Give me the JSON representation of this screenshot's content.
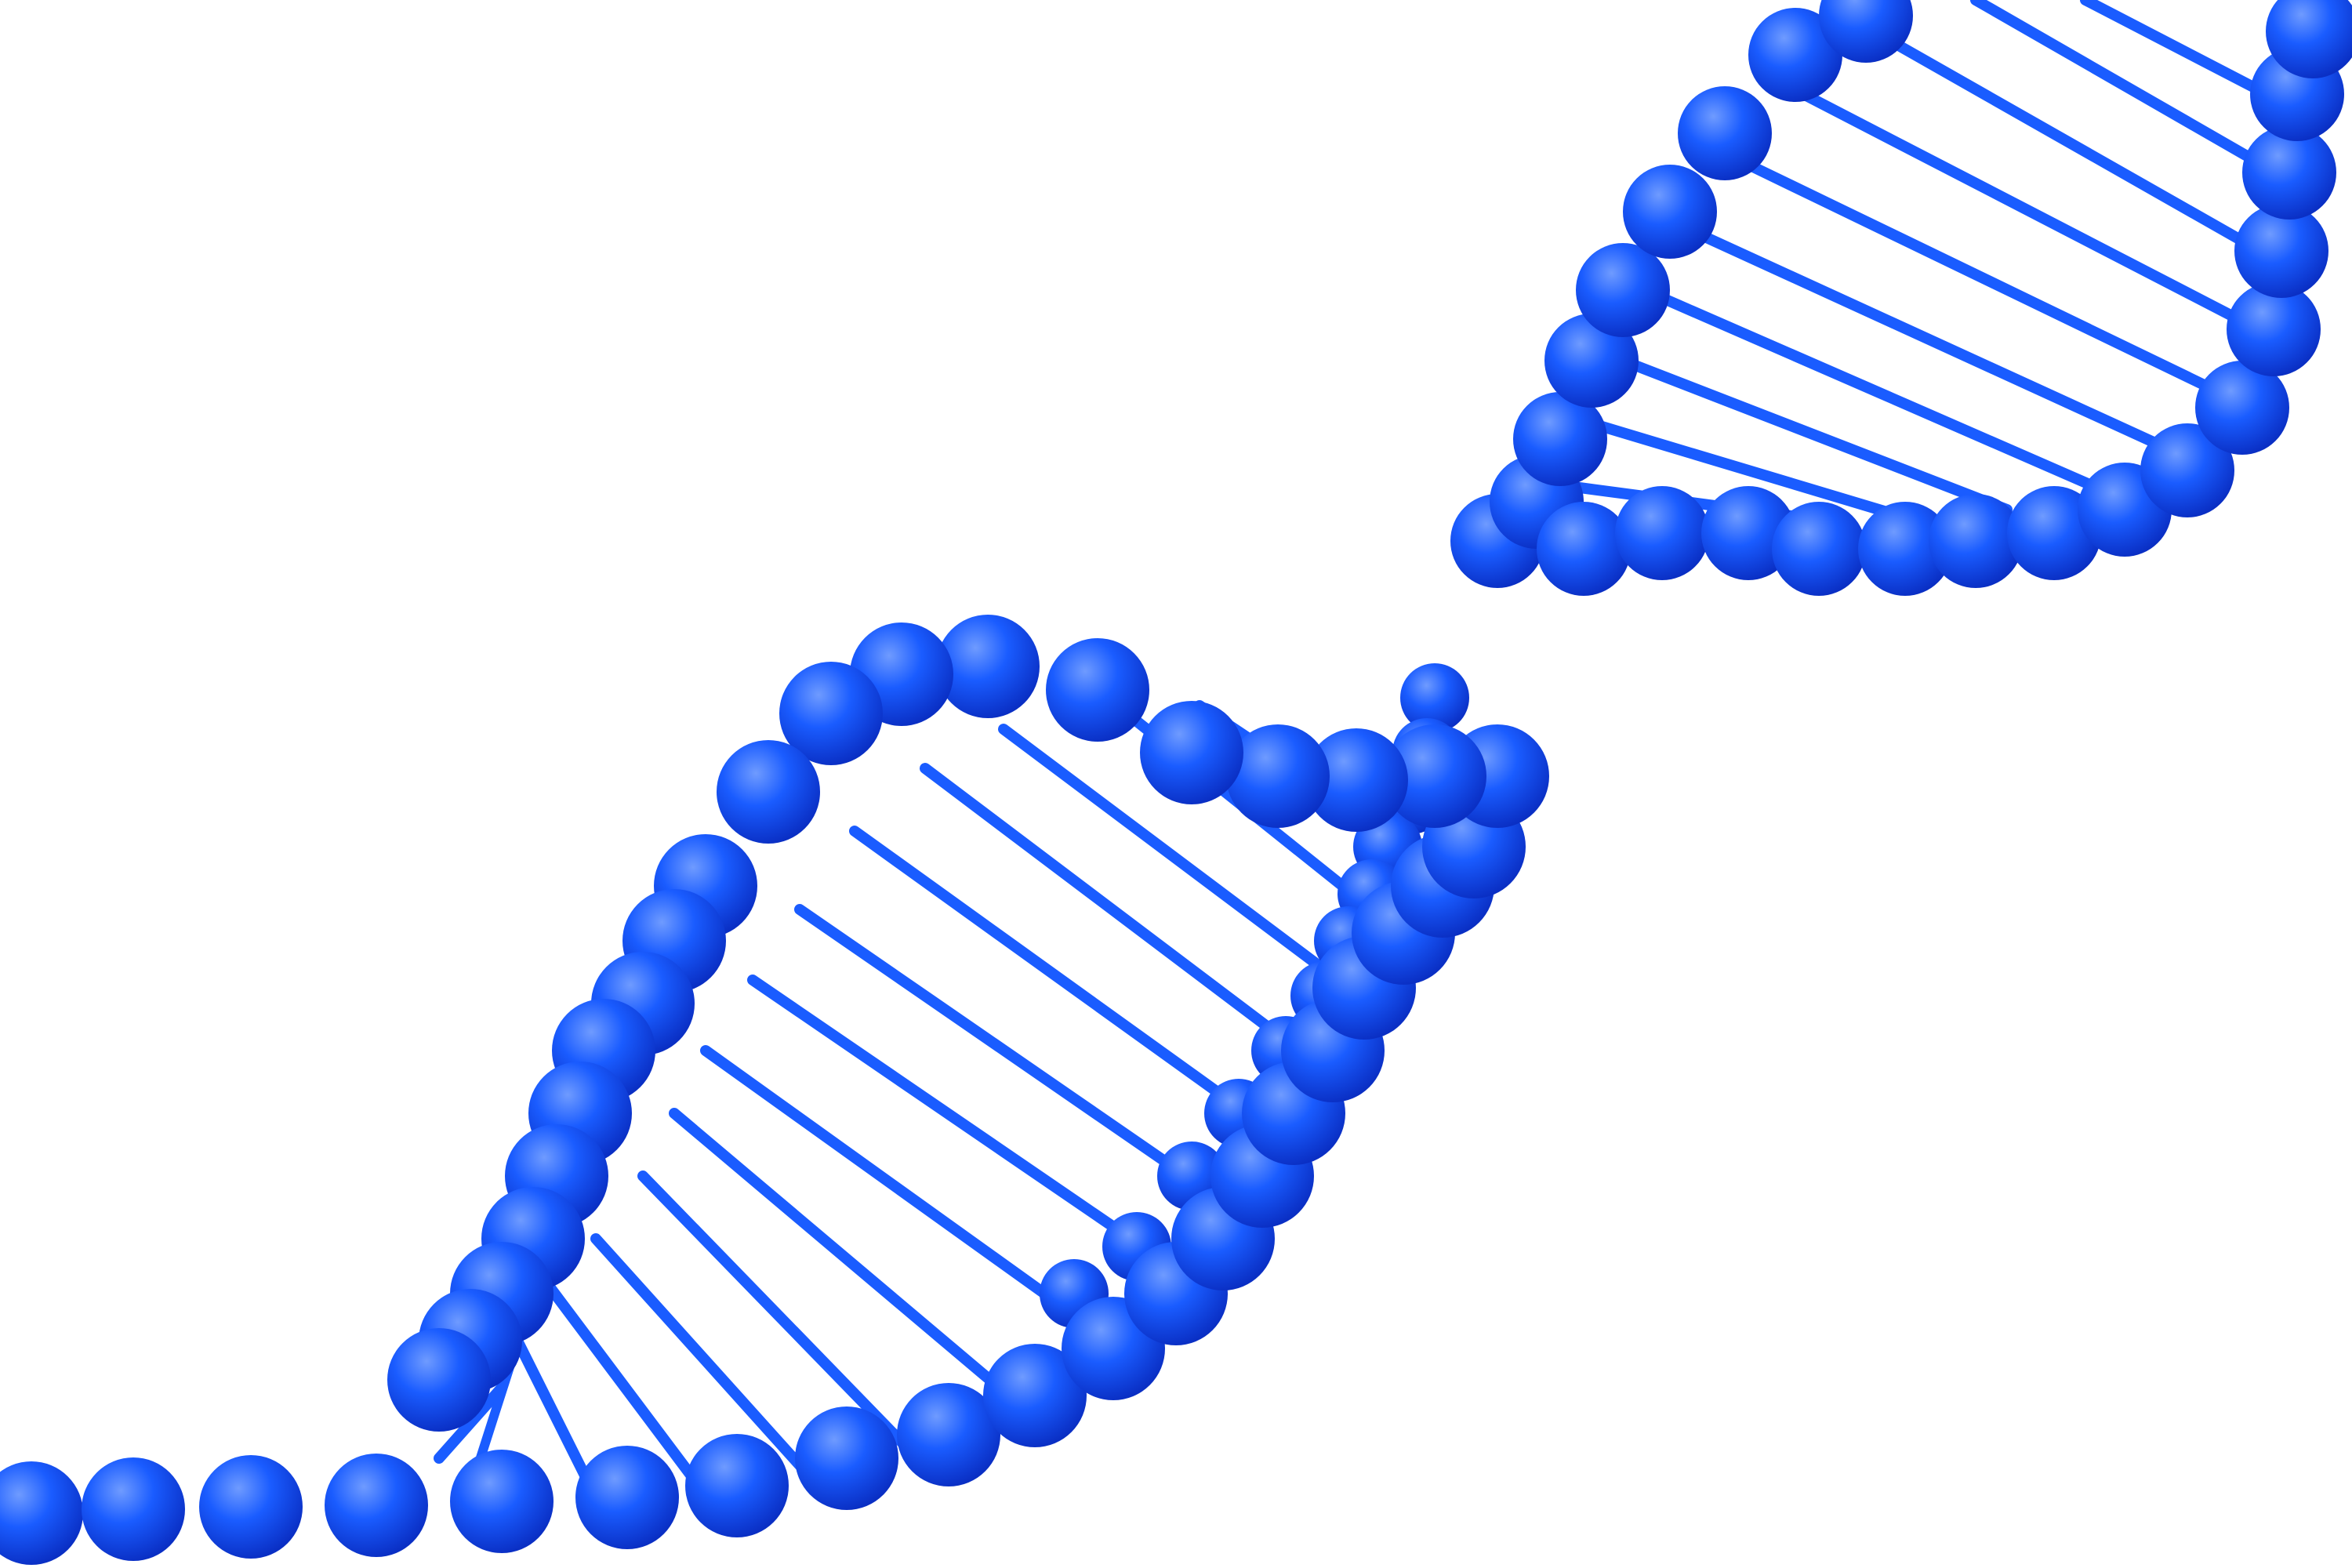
{
  "image": {
    "subject": "dna-double-helix",
    "background_color": "#ffffff",
    "helix_color": "#1a5cff",
    "helix_highlight_color": "#6f9bff",
    "helix_shadow_color": "#0a2fc4"
  }
}
